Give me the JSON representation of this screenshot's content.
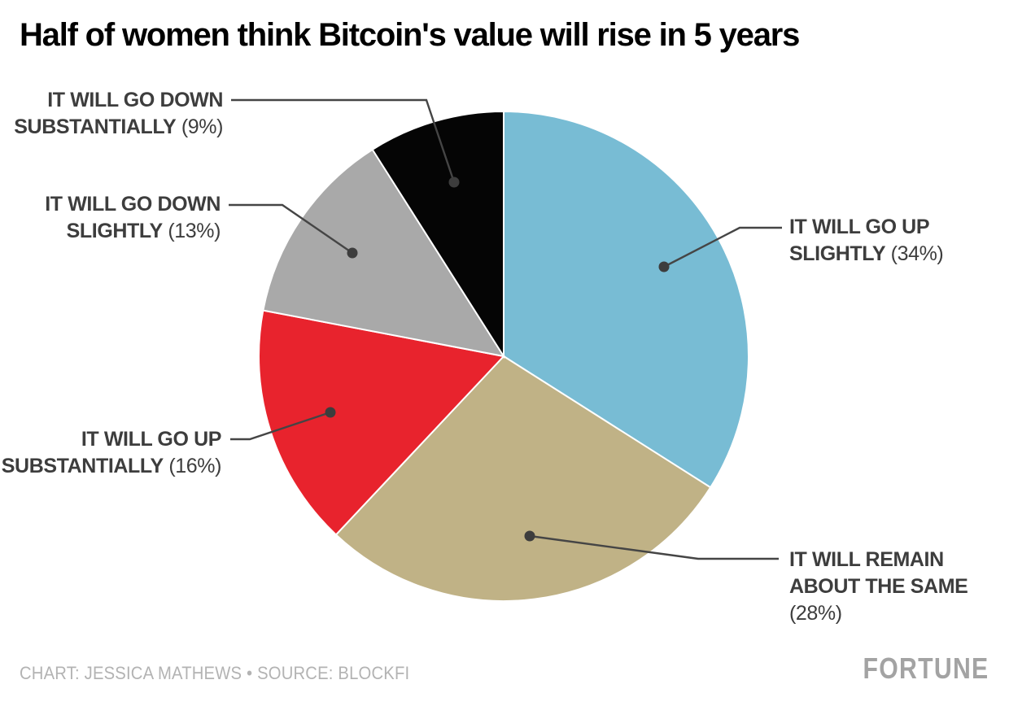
{
  "title": "Half of women think Bitcoin's value will rise in 5 years",
  "footer": {
    "credit": "CHART: JESSICA MATHEWS • SOURCE: BLOCKFI",
    "brand": "FORTUNE"
  },
  "colors": {
    "label_text": "#3d3d3d",
    "leader_line": "#454545",
    "leader_dot": "#3d3d3d",
    "slice_gap": "#ffffff",
    "credit_text": "#b3b3b3",
    "brand_text": "#a3a3a3"
  },
  "chart_data": {
    "type": "pie",
    "title": "Half of women think Bitcoin's value will rise in 5 years",
    "start_angle_deg": -90,
    "direction": "clockwise",
    "legend": "none (direct labels with leader lines)",
    "slices": [
      {
        "label": "IT WILL GO UP SLIGHTLY",
        "value": 34,
        "value_text": "(34%)",
        "color": "#78bcd4",
        "label_lines": [
          {
            "b": "IT WILL GO UP",
            "r": ""
          },
          {
            "b": "SLIGHTLY",
            "r": "(34%)"
          }
        ]
      },
      {
        "label": "IT WILL REMAIN ABOUT THE SAME",
        "value": 28,
        "value_text": "(28%)",
        "color": "#c0b286",
        "label_lines": [
          {
            "b": "IT WILL REMAIN",
            "r": ""
          },
          {
            "b": "ABOUT THE SAME",
            "r": ""
          },
          {
            "b": "",
            "r": "(28%)"
          }
        ]
      },
      {
        "label": "IT WILL GO UP SUBSTANTIALLY",
        "value": 16,
        "value_text": "(16%)",
        "color": "#e8232d",
        "label_lines": [
          {
            "b": "IT WILL GO UP",
            "r": ""
          },
          {
            "b": "SUBSTANTIALLY",
            "r": "(16%)"
          }
        ]
      },
      {
        "label": "IT WILL GO DOWN SLIGHTLY",
        "value": 13,
        "value_text": "(13%)",
        "color": "#a9a9a9",
        "label_lines": [
          {
            "b": "IT WILL GO DOWN",
            "r": ""
          },
          {
            "b": "SLIGHTLY",
            "r": "(13%)"
          }
        ]
      },
      {
        "label": "IT WILL GO DOWN SUBSTANTIALLY",
        "value": 9,
        "value_text": "(9%)",
        "color": "#050505",
        "label_lines": [
          {
            "b": "IT WILL GO DOWN",
            "r": ""
          },
          {
            "b": "SUBSTANTIALLY",
            "r": "(9%)"
          }
        ]
      }
    ]
  }
}
